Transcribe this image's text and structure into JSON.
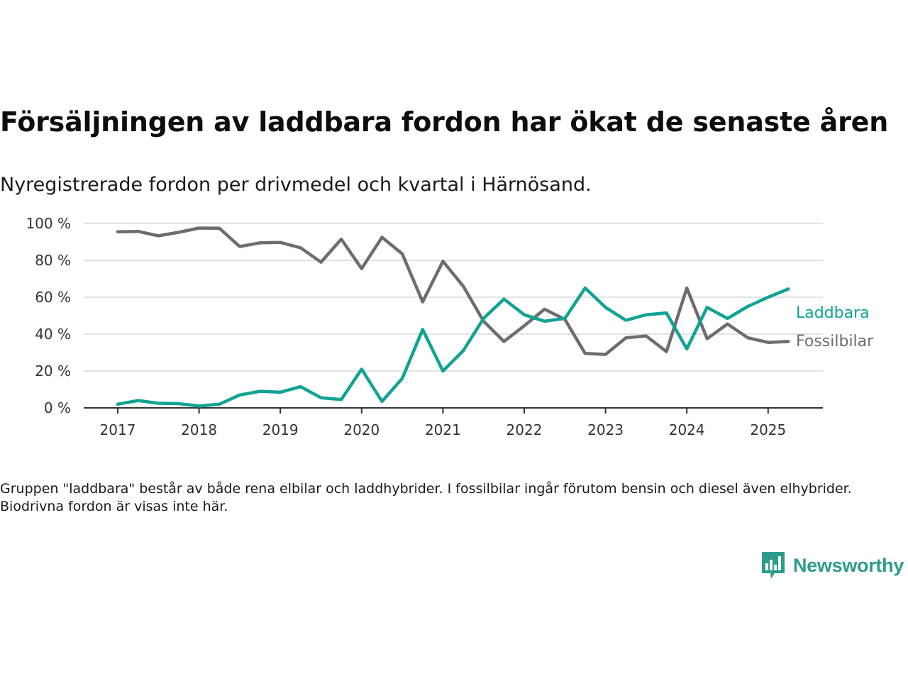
{
  "title": "Försäljningen av laddbara fordon har ökat de senaste åren",
  "subtitle": "Nyregistrerade fordon per drivmedel och kvartal i Härnösand.",
  "note": "Gruppen \"laddbara\" består av både rena elbilar och laddhybrider. I fossilbilar ingår förutom bensin och diesel även elhybrider. Biodrivna fordon är visas inte här.",
  "logo": {
    "text": "Newsworthy",
    "color": "#2e9c8c"
  },
  "chart_data": {
    "type": "line",
    "x": [
      2017.0,
      2017.25,
      2017.5,
      2017.75,
      2018.0,
      2018.25,
      2018.5,
      2018.75,
      2019.0,
      2019.25,
      2019.5,
      2019.75,
      2020.0,
      2020.25,
      2020.5,
      2020.75,
      2021.0,
      2021.25,
      2021.5,
      2021.75,
      2022.0,
      2022.25,
      2022.5,
      2022.75,
      2023.0,
      2023.25,
      2023.5,
      2023.75,
      2024.0,
      2024.25,
      2024.5,
      2024.75,
      2025.0,
      2025.25
    ],
    "x_ticks": [
      "2017",
      "2018",
      "2019",
      "2020",
      "2021",
      "2022",
      "2023",
      "2024",
      "2025"
    ],
    "y_ticks": [
      "0 %",
      "20 %",
      "40 %",
      "60 %",
      "80 %",
      "100 %"
    ],
    "ylim": [
      0,
      100
    ],
    "grid": true,
    "series": [
      {
        "name": "Laddbara",
        "color": "#10a393",
        "values": [
          2,
          4,
          2.5,
          2.3,
          1,
          2,
          7,
          9,
          8.5,
          11.5,
          5.5,
          4.5,
          21,
          3.5,
          16,
          42.5,
          20,
          31,
          48.5,
          59,
          50.5,
          47,
          48.5,
          65,
          54.5,
          47.5,
          50.5,
          51.5,
          32,
          54.5,
          48.5,
          55,
          60,
          64.5
        ]
      },
      {
        "name": "Fossilbilar",
        "color": "#6d6d70",
        "values": [
          95.5,
          95.7,
          93.3,
          95.2,
          97.5,
          97.4,
          87.5,
          89.5,
          89.7,
          86.8,
          79,
          91.5,
          75.5,
          92.5,
          83.5,
          57.5,
          79.5,
          66,
          47,
          36,
          44.5,
          53.5,
          48,
          29.5,
          29,
          38,
          39,
          30.5,
          65,
          37.5,
          45.5,
          38,
          35.5,
          36
        ]
      }
    ]
  }
}
